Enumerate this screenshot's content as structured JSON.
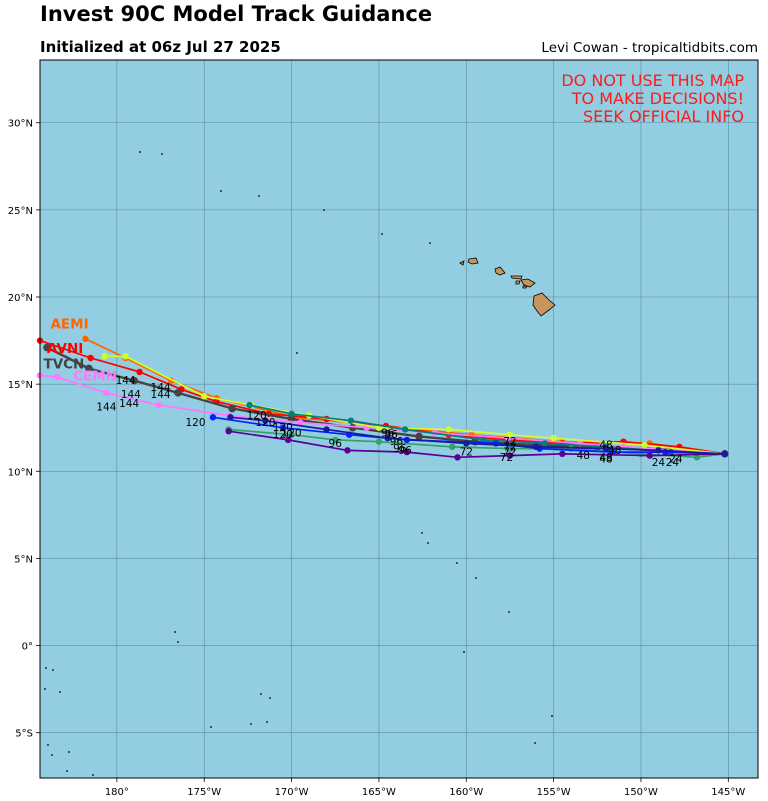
{
  "header": {
    "title": "Invest 90C Model Track Guidance",
    "subtitle": "Initialized at 06z Jul 27 2025",
    "credit": "Levi Cowan - tropicaltidbits.com"
  },
  "warning": [
    "DO NOT USE THIS MAP",
    "TO MAKE DECISIONS!",
    "SEEK OFFICIAL INFO"
  ],
  "map": {
    "lon_range": [
      -184.4,
      -143.3
    ],
    "lat_range": [
      -7.6,
      33.6
    ],
    "background": "#93cde2",
    "land_color": "#c8955c",
    "lon_ticks": [
      {
        "lon": -180,
        "label": "180°"
      },
      {
        "lon": -175,
        "label": "175°W"
      },
      {
        "lon": -170,
        "label": "170°W"
      },
      {
        "lon": -165,
        "label": "165°W"
      },
      {
        "lon": -160,
        "label": "160°W"
      },
      {
        "lon": -155,
        "label": "155°W"
      },
      {
        "lon": -150,
        "label": "150°W"
      },
      {
        "lon": -145,
        "label": "145°W"
      }
    ],
    "lat_ticks": [
      {
        "lat": 30,
        "label": "30°N"
      },
      {
        "lat": 25,
        "label": "25°N"
      },
      {
        "lat": 20,
        "label": "20°N"
      },
      {
        "lat": 15,
        "label": "15°N"
      },
      {
        "lat": 10,
        "label": "10°N"
      },
      {
        "lat": 5,
        "label": "5°N"
      },
      {
        "lat": 0,
        "label": "0°"
      },
      {
        "lat": -5,
        "label": "5°S"
      }
    ]
  },
  "tracks": [
    {
      "name": "AEMI",
      "color": "#ff6600",
      "label_pos": [
        -183.8,
        18.2
      ],
      "show_label": true,
      "points": [
        [
          -145.2,
          11.0
        ],
        [
          -149.5,
          11.6
        ],
        [
          -154.5,
          11.7
        ],
        [
          -159.7,
          12.1
        ],
        [
          -164.6,
          12.6
        ],
        [
          -169.8,
          13.1
        ],
        [
          -174.3,
          14.2
        ],
        [
          -176.9,
          15.2
        ],
        [
          -179.5,
          16.5
        ],
        [
          -181.8,
          17.6
        ]
      ]
    },
    {
      "name": "AVNI",
      "color": "#ff0000",
      "label_pos": [
        -184.0,
        16.8
      ],
      "show_label": true,
      "points": [
        [
          -145.2,
          11.0
        ],
        [
          -147.8,
          11.4
        ],
        [
          -151.0,
          11.7
        ],
        [
          -154.5,
          11.6
        ],
        [
          -157.6,
          11.8
        ],
        [
          -161.0,
          12.1
        ],
        [
          -164.6,
          12.6
        ],
        [
          -168.0,
          13.0
        ],
        [
          -171.3,
          13.3
        ],
        [
          -174.3,
          14.0
        ],
        [
          -176.3,
          14.7
        ],
        [
          -178.7,
          15.7
        ],
        [
          -181.5,
          16.5
        ],
        [
          -184.4,
          17.5
        ]
      ]
    },
    {
      "name": "TVCN",
      "color": "#444444",
      "label_pos": [
        -184.2,
        15.9
      ],
      "show_label": true,
      "points": [
        [
          -145.2,
          11.0
        ],
        [
          -149.0,
          11.3
        ],
        [
          -152.5,
          11.4
        ],
        [
          -156.0,
          11.5
        ],
        [
          -159.5,
          11.7
        ],
        [
          -162.7,
          12.0
        ],
        [
          -166.5,
          12.5
        ],
        [
          -170.0,
          13.0
        ],
        [
          -173.4,
          13.6
        ],
        [
          -176.5,
          14.5
        ],
        [
          -179.0,
          15.2
        ],
        [
          -181.6,
          15.9
        ],
        [
          -184.0,
          17.1
        ]
      ]
    },
    {
      "name": "CEMN",
      "color": "#ff77ff",
      "label_pos": [
        -182.5,
        15.2
      ],
      "show_label": true,
      "points": [
        [
          -145.2,
          11.0
        ],
        [
          -149.3,
          11.3
        ],
        [
          -153.5,
          11.6
        ],
        [
          -157.6,
          11.9
        ],
        [
          -161.8,
          12.2
        ],
        [
          -165.7,
          12.5
        ],
        [
          -169.5,
          12.8
        ],
        [
          -173.6,
          13.2
        ],
        [
          -177.6,
          13.8
        ],
        [
          -180.6,
          14.5
        ],
        [
          -183.4,
          15.4
        ],
        [
          -184.4,
          15.5
        ]
      ]
    },
    {
      "name": "HWRF",
      "color": "#ccff33",
      "label_pos": [
        -182.0,
        16.4
      ],
      "show_label": false,
      "points": [
        [
          -145.2,
          11.0
        ],
        [
          -149.8,
          11.5
        ],
        [
          -155.0,
          11.9
        ],
        [
          -157.5,
          12.1
        ],
        [
          -161.0,
          12.4
        ],
        [
          -165.0,
          12.5
        ],
        [
          -169.0,
          13.2
        ],
        [
          -172.3,
          13.8
        ],
        [
          -175.0,
          14.3
        ],
        [
          -179.5,
          16.6
        ],
        [
          -180.7,
          16.6
        ]
      ]
    },
    {
      "name": "TEAL1",
      "color": "#008080",
      "label_pos": [
        -175,
        14
      ],
      "show_label": false,
      "points": [
        [
          -145.2,
          11.0
        ],
        [
          -148.3,
          11.1
        ],
        [
          -152.0,
          11.4
        ],
        [
          -155.5,
          11.6
        ],
        [
          -159.0,
          11.8
        ],
        [
          -163.5,
          12.4
        ],
        [
          -166.6,
          12.9
        ],
        [
          -170.0,
          13.3
        ],
        [
          -172.4,
          13.8
        ]
      ]
    },
    {
      "name": "SEA",
      "color": "#33a36b",
      "label_pos": [
        -175,
        12
      ],
      "show_label": false,
      "points": [
        [
          -145.2,
          11.0
        ],
        [
          -146.8,
          10.8
        ],
        [
          -150.0,
          11.0
        ],
        [
          -154.0,
          11.3
        ],
        [
          -157.5,
          11.3
        ],
        [
          -160.8,
          11.4
        ],
        [
          -165.0,
          11.7
        ],
        [
          -167.5,
          11.8
        ],
        [
          -170.0,
          12.1
        ],
        [
          -173.6,
          12.4
        ]
      ]
    },
    {
      "name": "BLUE",
      "color": "#0022ff",
      "label_pos": [
        -175,
        12
      ],
      "show_label": false,
      "points": [
        [
          -145.2,
          11.0
        ],
        [
          -148.6,
          11.1
        ],
        [
          -151.6,
          11.1
        ],
        [
          -155.8,
          11.3
        ],
        [
          -158.3,
          11.6
        ],
        [
          -163.4,
          11.8
        ],
        [
          -166.7,
          12.1
        ],
        [
          -170.5,
          12.5
        ],
        [
          -174.5,
          13.1
        ]
      ]
    },
    {
      "name": "PURPLE",
      "color": "#5a0096",
      "label_pos": [
        -175,
        12
      ],
      "show_label": false,
      "points": [
        [
          -145.2,
          11.0
        ],
        [
          -149.5,
          10.9
        ],
        [
          -154.5,
          11.0
        ],
        [
          -157.5,
          10.9
        ],
        [
          -160.5,
          10.8
        ],
        [
          -163.4,
          11.1
        ],
        [
          -166.8,
          11.2
        ],
        [
          -170.2,
          11.8
        ],
        [
          -173.6,
          12.3
        ]
      ]
    },
    {
      "name": "NAVY",
      "color": "#1a1aa0",
      "label_pos": [
        -175,
        12
      ],
      "show_label": false,
      "points": [
        [
          -145.2,
          11.0
        ],
        [
          -149.0,
          11.2
        ],
        [
          -152.0,
          11.3
        ],
        [
          -156.0,
          11.4
        ],
        [
          -160.0,
          11.6
        ],
        [
          -164.5,
          11.9
        ],
        [
          -168.0,
          12.4
        ],
        [
          -171.5,
          12.9
        ],
        [
          -173.5,
          13.1
        ]
      ]
    }
  ],
  "hour_labels": [
    {
      "text": "144",
      "lon": -179.5,
      "lat": 15.0
    },
    {
      "text": "144",
      "lon": -177.5,
      "lat": 14.6
    },
    {
      "text": "144",
      "lon": -179.2,
      "lat": 14.2
    },
    {
      "text": "144",
      "lon": -177.5,
      "lat": 14.2
    },
    {
      "text": "144",
      "lon": -180.6,
      "lat": 13.5
    },
    {
      "text": "144",
      "lon": -179.3,
      "lat": 13.7
    },
    {
      "text": "120",
      "lon": -175.5,
      "lat": 12.6
    },
    {
      "text": "120",
      "lon": -172.0,
      "lat": 13.0
    },
    {
      "text": "120",
      "lon": -171.5,
      "lat": 12.6
    },
    {
      "text": "120",
      "lon": -170.5,
      "lat": 12.3
    },
    {
      "text": "120",
      "lon": -170.0,
      "lat": 12.0
    },
    {
      "text": "120",
      "lon": -170.5,
      "lat": 11.9
    },
    {
      "text": "96",
      "lon": -167.5,
      "lat": 11.4
    },
    {
      "text": "96",
      "lon": -164.5,
      "lat": 12.0
    },
    {
      "text": "96",
      "lon": -164.3,
      "lat": 11.9
    },
    {
      "text": "96",
      "lon": -164.0,
      "lat": 11.5
    },
    {
      "text": "96",
      "lon": -163.8,
      "lat": 11.1
    },
    {
      "text": "96",
      "lon": -163.5,
      "lat": 11.0
    },
    {
      "text": "72",
      "lon": -160.0,
      "lat": 10.9
    },
    {
      "text": "72",
      "lon": -157.5,
      "lat": 11.5
    },
    {
      "text": "72",
      "lon": -157.5,
      "lat": 11.2
    },
    {
      "text": "72",
      "lon": -157.5,
      "lat": 10.9
    },
    {
      "text": "72",
      "lon": -157.7,
      "lat": 10.6
    },
    {
      "text": "48",
      "lon": -153.3,
      "lat": 10.7
    },
    {
      "text": "48",
      "lon": -152.0,
      "lat": 11.3
    },
    {
      "text": "48",
      "lon": -151.5,
      "lat": 11.0
    },
    {
      "text": "48",
      "lon": -152.0,
      "lat": 10.6
    },
    {
      "text": "48",
      "lon": -152.0,
      "lat": 10.5
    },
    {
      "text": "24",
      "lon": -149.0,
      "lat": 10.3
    },
    {
      "text": "24",
      "lon": -148.0,
      "lat": 10.5
    },
    {
      "text": "24",
      "lon": -148.2,
      "lat": 10.3
    }
  ]
}
